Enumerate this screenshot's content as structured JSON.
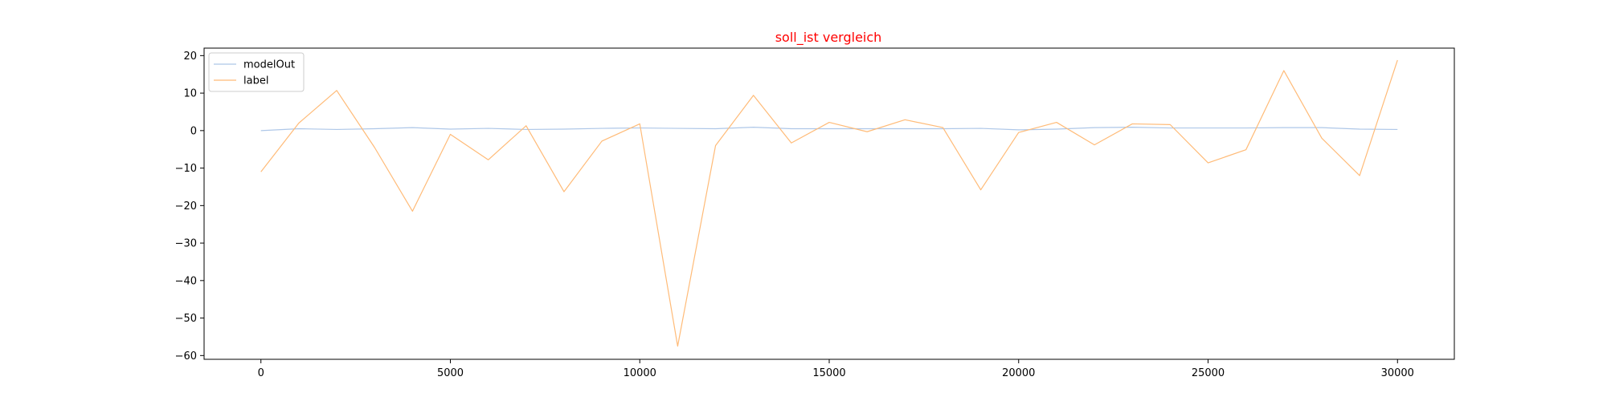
{
  "chart_data": {
    "type": "line",
    "title": "soll_ist vergleich",
    "title_color": "#ff0000",
    "xlabel": "",
    "ylabel": "",
    "xlim": [
      -1500,
      31500
    ],
    "ylim": [
      -61,
      22
    ],
    "xticks": [
      0,
      5000,
      10000,
      15000,
      20000,
      25000,
      30000
    ],
    "yticks": [
      20,
      10,
      0,
      -10,
      -20,
      -30,
      -40,
      -50,
      -60
    ],
    "xtick_labels": [
      "0",
      "5000",
      "10000",
      "15000",
      "20000",
      "25000",
      "30000"
    ],
    "ytick_labels": [
      "20",
      "10",
      "0",
      "−10",
      "−20",
      "−30",
      "−40",
      "−50",
      "−60"
    ],
    "grid": false,
    "legend": "upper-left",
    "x": [
      0,
      1000,
      2000,
      3000,
      4000,
      5000,
      6000,
      7000,
      8000,
      9000,
      10000,
      11000,
      12000,
      13000,
      14000,
      15000,
      16000,
      17000,
      18000,
      19000,
      20000,
      21000,
      22000,
      23000,
      24000,
      25000,
      26000,
      27000,
      28000,
      29000,
      30000
    ],
    "series": [
      {
        "name": "modelOut",
        "color": "#aec7e8",
        "values": [
          0.0,
          0.5,
          0.3,
          0.5,
          0.8,
          0.4,
          0.6,
          0.3,
          0.4,
          0.6,
          0.7,
          0.6,
          0.5,
          0.9,
          0.5,
          0.5,
          0.5,
          0.5,
          0.5,
          0.6,
          0.2,
          0.4,
          0.8,
          0.9,
          0.7,
          0.7,
          0.7,
          0.8,
          0.8,
          0.4,
          0.3
        ]
      },
      {
        "name": "label",
        "color": "#ffbb78",
        "values": [
          -11.0,
          2.0,
          10.7,
          -4.5,
          -21.5,
          -1.0,
          -7.8,
          1.3,
          -16.3,
          -2.8,
          1.8,
          -57.5,
          -4.0,
          9.4,
          -3.3,
          2.2,
          -0.3,
          2.9,
          0.8,
          -15.8,
          -0.5,
          2.2,
          -3.8,
          1.8,
          1.6,
          -8.6,
          -5.1,
          16.0,
          -2.0,
          -12.0,
          18.8
        ]
      }
    ]
  }
}
